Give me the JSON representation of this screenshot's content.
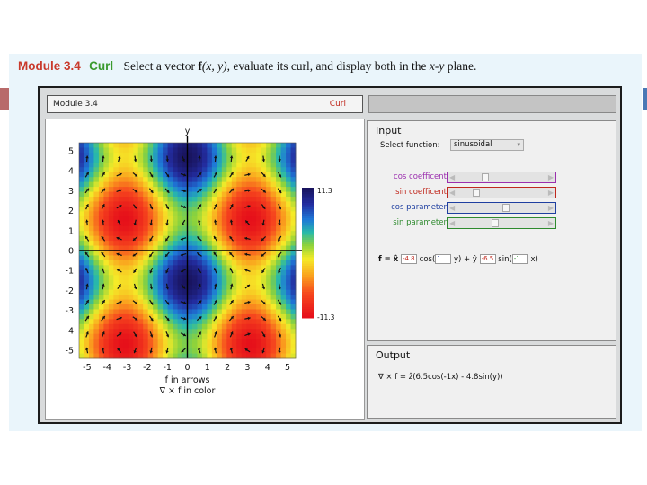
{
  "heading": {
    "module": "Module 3.4",
    "name": "Curl",
    "description_start": "Select a vector ",
    "description_func": "f",
    "description_args": "(x, y)",
    "description_mid": ", evaluate its curl, and display both in the ",
    "description_plane": "x-y",
    "description_end": " plane."
  },
  "app": {
    "header_left": "Module 3.4",
    "header_right": "Curl"
  },
  "input": {
    "title": "Input",
    "select_label": "Select function:",
    "select_value": "sinusoidal",
    "sliders": [
      {
        "label": "cos coefficent",
        "color": "#9b2fae",
        "value_fraction": 0.3
      },
      {
        "label": "sin coefficent",
        "color": "#c0281d",
        "value_fraction": 0.2
      },
      {
        "label": "cos parameter",
        "color": "#1f3fa0",
        "value_fraction": 0.55
      },
      {
        "label": "sin parameter",
        "color": "#2e8a2e",
        "value_fraction": 0.42
      }
    ],
    "formula": {
      "prefix": "f = x̂",
      "a": "-4.8",
      "mid1": "cos(",
      "b": "1",
      "mid2": "y) + ŷ",
      "c": "-6.5",
      "mid3": "sin(",
      "d": "-1",
      "suffix": "x)"
    }
  },
  "output": {
    "title": "Output",
    "text": "∇ × f = ẑ(6.5cos(-1x) - 4.8sin(y))"
  },
  "chart_data": {
    "type": "heatmap",
    "function": "curl_z = 6.5*cos(-x) - 4.8*sin(y)",
    "x_axis_label": "x",
    "y_axis_label": "y",
    "xlim": [
      -5.4,
      5.4
    ],
    "ylim": [
      -5.4,
      5.4
    ],
    "x_ticks": [
      "-5",
      "-4",
      "-3",
      "-2",
      "-1",
      "0",
      "1",
      "2",
      "3",
      "4",
      "5"
    ],
    "y_ticks": [
      "-5",
      "-4",
      "-3",
      "-2",
      "-1",
      "0",
      "1",
      "2",
      "3",
      "4",
      "5"
    ],
    "colorbar": {
      "max": "11.3",
      "min": "-11.3",
      "max_color": "#1a1566",
      "min_color": "#e8101a"
    },
    "caption_line1": "f in arrows",
    "caption_line2": "∇ × f in color"
  }
}
